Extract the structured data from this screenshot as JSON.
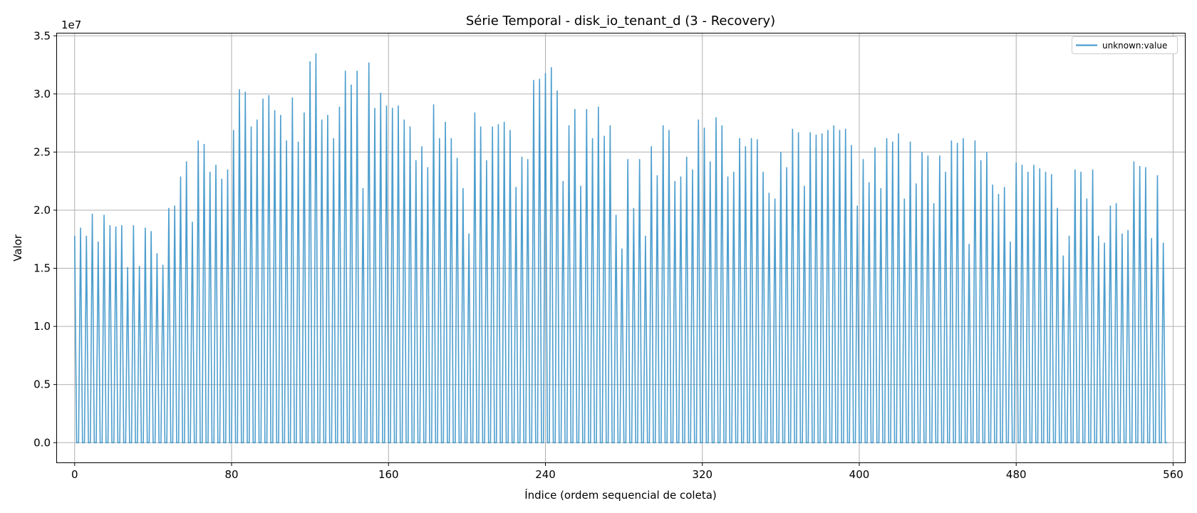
{
  "chart_data": {
    "type": "line",
    "title": "Série Temporal - disk_io_tenant_d (3 - Recovery)",
    "xlabel": "Índice (ordem sequencial de coleta)",
    "ylabel": "Valor",
    "y_multiplier": "1e7",
    "xlim": [
      -9,
      566
    ],
    "ylim": [
      -0.17,
      3.52
    ],
    "x_ticks": [
      0,
      80,
      160,
      240,
      320,
      400,
      480,
      560
    ],
    "y_ticks": [
      0.0,
      0.5,
      1.0,
      1.5,
      2.0,
      2.5,
      3.0,
      3.5
    ],
    "y_tick_labels": [
      "0.0",
      "0.5",
      "1.0",
      "1.5",
      "2.0",
      "2.5",
      "3.0",
      "3.5"
    ],
    "grid": true,
    "legend_position": "top-right",
    "line_color": "#3a93c9",
    "series": [
      {
        "name": "unknown:value",
        "spike_period": 3,
        "spike_start": 0,
        "last_index": 557,
        "peaks": [
          1.78,
          1.85,
          1.78,
          1.97,
          1.73,
          1.96,
          1.87,
          1.86,
          1.87,
          1.51,
          1.87,
          1.52,
          1.85,
          1.82,
          1.63,
          1.53,
          2.02,
          2.04,
          2.29,
          2.42,
          1.9,
          2.6,
          2.57,
          2.33,
          2.39,
          2.27,
          2.35,
          2.69,
          3.04,
          3.02,
          2.72,
          2.78,
          2.96,
          2.99,
          2.86,
          2.82,
          2.6,
          2.97,
          2.59,
          2.84,
          3.28,
          3.35,
          2.78,
          2.82,
          2.62,
          2.89,
          3.2,
          3.08,
          3.2,
          2.19,
          3.27,
          2.88,
          3.01,
          2.9,
          2.88,
          2.9,
          2.78,
          2.72,
          2.43,
          2.55,
          2.37,
          2.91,
          2.62,
          2.76,
          2.62,
          2.45,
          2.19,
          1.8,
          2.84,
          2.72,
          2.43,
          2.72,
          2.74,
          2.76,
          2.69,
          2.2,
          2.46,
          2.44,
          3.12,
          3.13,
          3.18,
          3.23,
          3.03,
          2.25,
          2.73,
          2.87,
          2.21,
          2.87,
          2.62,
          2.89,
          2.64,
          2.73,
          1.96,
          1.67,
          2.44,
          2.02,
          2.44,
          1.78,
          2.55,
          2.3,
          2.73,
          2.69,
          2.25,
          2.29,
          2.46,
          2.35,
          2.78,
          2.71,
          2.42,
          2.8,
          2.73,
          2.29,
          2.33,
          2.62,
          2.55,
          2.62,
          2.61,
          2.33,
          2.15,
          2.1,
          2.5,
          2.37,
          2.7,
          2.67,
          2.21,
          2.67,
          2.65,
          2.66,
          2.69,
          2.73,
          2.69,
          2.7,
          2.56,
          2.04,
          2.44,
          2.24,
          2.54,
          2.19,
          2.62,
          2.59,
          2.66,
          2.1,
          2.59,
          2.23,
          2.5,
          2.47,
          2.06,
          2.47,
          2.33,
          2.6,
          2.58,
          2.62,
          1.71,
          2.6,
          2.43,
          2.5,
          2.22,
          2.14,
          2.2,
          1.73,
          2.41,
          2.39,
          2.33,
          2.39,
          2.36,
          2.33,
          2.31,
          2.02,
          1.61,
          1.78,
          2.35,
          2.33,
          2.1,
          2.35,
          1.78,
          1.72,
          2.04,
          2.06,
          1.8,
          1.83,
          2.42,
          2.38,
          2.37,
          1.76,
          2.3,
          1.72
        ]
      }
    ]
  }
}
